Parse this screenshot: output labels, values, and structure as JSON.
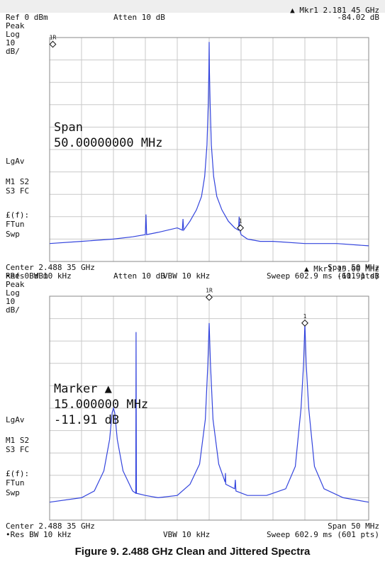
{
  "caption": "Figure 9. 2.488 GHz Clean and Jittered Spectra",
  "trace_color": "#3344dd",
  "grid_color": "#c9c9c9",
  "chart_data": [
    {
      "type": "line",
      "title": "",
      "marker_header": "▲ Mkr1  2.181 45 GHz",
      "marker_value": "-84.02 dB",
      "ref_level": "Ref 0 dBm",
      "attenuation": "Atten 10 dB",
      "side_labels": [
        "Peak",
        "Log",
        "10",
        "dB/",
        "LgAv",
        "M1  S2",
        "S3  FC",
        "£(f):",
        "FTun",
        "Swp"
      ],
      "marker_tag": "1R",
      "overlay_lines": [
        "Span",
        "50.00000000 MHz"
      ],
      "footer": {
        "center": "Center 2.488 35 GHz",
        "span": "Span 50 MHz",
        "res_bw": "•Res BW 10 kHz",
        "vbw": "VBW 10 kHz",
        "sweep": "Sweep 602.9 ms (601 pts)"
      },
      "xlabel": "",
      "ylabel": "",
      "xlim": [
        -25,
        25
      ],
      "ylim": [
        -100,
        0
      ],
      "grid": true,
      "x": [
        -25,
        -20,
        -15,
        -12,
        -10,
        -9.9,
        -9.8,
        -8,
        -5,
        -4.2,
        -4.1,
        -4,
        -3,
        -2,
        -1.2,
        -0.7,
        -0.35,
        -0.15,
        -0.05,
        0,
        0.05,
        0.15,
        0.35,
        0.7,
        1.2,
        2,
        3,
        4,
        4.6,
        4.7,
        4.8,
        5,
        5.5,
        6,
        8,
        10,
        15,
        20,
        25
      ],
      "values": [
        -92,
        -91,
        -90,
        -89,
        -88,
        -79,
        -88,
        -87,
        -85,
        -86,
        -81,
        -86,
        -82,
        -77,
        -71,
        -62,
        -48,
        -30,
        -15,
        -2,
        -15,
        -30,
        -48,
        -62,
        -71,
        -77,
        -82,
        -85,
        -86,
        -80,
        -86,
        -88,
        -89,
        -90,
        -91,
        -91,
        -92,
        -92,
        -93
      ],
      "markers": [
        {
          "label": "1R",
          "x": -24.5,
          "y": -3
        },
        {
          "label": "1",
          "x": 4.9,
          "y": -85
        }
      ]
    },
    {
      "type": "line",
      "title": "",
      "marker_header": "▲ Mkr1  15.00 MHz",
      "marker_value": "-11.91 dB",
      "ref_level": "Ref 0 dBm",
      "attenuation": "Atten 10 dB",
      "side_labels": [
        "Peak",
        "Log",
        "10",
        "dB/",
        "LgAv",
        "M1  S2",
        "S3  FC",
        "£(f):",
        "FTun",
        "Swp"
      ],
      "marker_tag": "1R",
      "overlay_lines": [
        "Marker ▲",
        "15.000000 MHz",
        "-11.91 dB"
      ],
      "footer": {
        "center": "Center 2.488 35 GHz",
        "span": "Span 50 MHz",
        "res_bw": "•Res BW 10 kHz",
        "vbw": "VBW 10 kHz",
        "sweep": "Sweep 602.9 ms (601 pts)"
      },
      "xlabel": "",
      "ylabel": "",
      "xlim": [
        -25,
        25
      ],
      "ylim": [
        -100,
        0
      ],
      "grid": true,
      "x": [
        -25,
        -20,
        -18,
        -16.5,
        -15.6,
        -15.2,
        -15,
        -14.8,
        -14.4,
        -13.5,
        -12,
        -11.5,
        -11.45,
        -11.4,
        -10,
        -8,
        -5,
        -3,
        -1.5,
        -0.6,
        -0.2,
        0,
        0.2,
        0.6,
        1.5,
        2.5,
        2.55,
        2.6,
        4,
        4.1,
        4.2,
        6,
        9,
        12,
        13.5,
        14.4,
        14.8,
        15,
        15.2,
        15.6,
        16.5,
        18,
        21,
        25
      ],
      "values": [
        -92,
        -90,
        -87,
        -78,
        -64,
        -52,
        -50,
        -52,
        -64,
        -78,
        -87,
        -88,
        -16,
        -88,
        -89,
        -90,
        -89,
        -84,
        -75,
        -55,
        -30,
        -12,
        -30,
        -55,
        -75,
        -83,
        -79,
        -84,
        -86,
        -82,
        -87,
        -89,
        -89,
        -86,
        -76,
        -50,
        -30,
        -12,
        -30,
        -50,
        -76,
        -86,
        -90,
        -92
      ],
      "markers": [
        {
          "label": "1R",
          "x": 0,
          "y": -0.5
        },
        {
          "label": "1",
          "x": 15,
          "y": -12
        }
      ]
    }
  ]
}
